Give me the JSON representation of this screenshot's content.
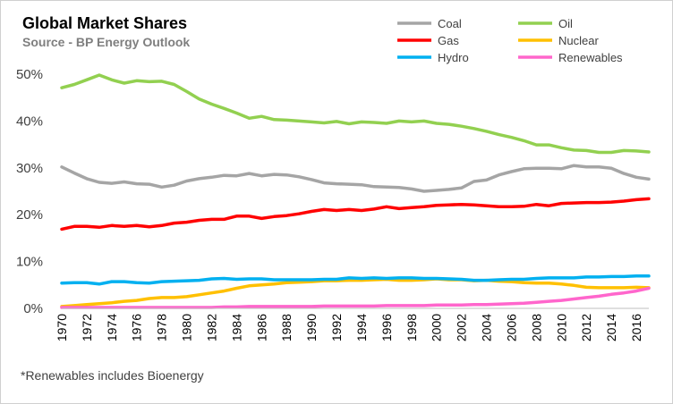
{
  "chart_data": {
    "type": "line",
    "title": "Global Market Shares",
    "subtitle": "Source - BP Energy Outlook",
    "footnote": "*Renewables includes Bioenergy",
    "xlabel": "",
    "ylabel": "",
    "ylim": [
      0,
      50
    ],
    "yticks": [
      "0%",
      "10%",
      "20%",
      "30%",
      "40%",
      "50%"
    ],
    "x": [
      1970,
      1971,
      1972,
      1973,
      1974,
      1975,
      1976,
      1977,
      1978,
      1979,
      1980,
      1981,
      1982,
      1983,
      1984,
      1985,
      1986,
      1987,
      1988,
      1989,
      1990,
      1991,
      1992,
      1993,
      1994,
      1995,
      1996,
      1997,
      1998,
      1999,
      2000,
      2001,
      2002,
      2003,
      2004,
      2005,
      2006,
      2007,
      2008,
      2009,
      2010,
      2011,
      2012,
      2013,
      2014,
      2015,
      2016,
      2017
    ],
    "xtick_labels": [
      "1970",
      "1972",
      "1974",
      "1976",
      "1978",
      "1980",
      "1982",
      "1984",
      "1986",
      "1988",
      "1990",
      "1992",
      "1994",
      "1996",
      "1998",
      "2000",
      "2002",
      "2004",
      "2006",
      "2008",
      "2010",
      "2012",
      "2014",
      "2016"
    ],
    "legend_position": "top-right",
    "grid": false,
    "series": [
      {
        "name": "Coal",
        "color": "#a5a5a5",
        "values": [
          30.2,
          28.9,
          27.7,
          26.9,
          26.7,
          27.0,
          26.6,
          26.5,
          25.9,
          26.3,
          27.2,
          27.7,
          28.0,
          28.4,
          28.3,
          28.8,
          28.3,
          28.6,
          28.5,
          28.1,
          27.5,
          26.8,
          26.6,
          26.5,
          26.4,
          26.0,
          25.9,
          25.8,
          25.5,
          25.0,
          25.2,
          25.4,
          25.7,
          27.1,
          27.4,
          28.5,
          29.2,
          29.8,
          29.9,
          29.9,
          29.8,
          30.5,
          30.2,
          30.2,
          29.9,
          28.8,
          28.0,
          27.6
        ]
      },
      {
        "name": "Oil",
        "color": "#92d050",
        "values": [
          47.1,
          47.8,
          48.8,
          49.8,
          48.8,
          48.1,
          48.6,
          48.4,
          48.5,
          47.8,
          46.3,
          44.7,
          43.6,
          42.7,
          41.7,
          40.6,
          41.0,
          40.3,
          40.2,
          40.0,
          39.8,
          39.6,
          39.9,
          39.4,
          39.8,
          39.7,
          39.5,
          40.0,
          39.8,
          40.0,
          39.5,
          39.3,
          38.9,
          38.4,
          37.8,
          37.1,
          36.5,
          35.8,
          34.9,
          34.9,
          34.3,
          33.8,
          33.7,
          33.3,
          33.3,
          33.7,
          33.6,
          33.4
        ]
      },
      {
        "name": "Gas",
        "color": "#ff0000",
        "values": [
          16.9,
          17.5,
          17.5,
          17.3,
          17.7,
          17.5,
          17.7,
          17.4,
          17.7,
          18.2,
          18.4,
          18.8,
          19.0,
          19.0,
          19.7,
          19.7,
          19.2,
          19.6,
          19.8,
          20.2,
          20.7,
          21.1,
          20.9,
          21.1,
          20.9,
          21.2,
          21.7,
          21.3,
          21.5,
          21.7,
          22.0,
          22.1,
          22.2,
          22.1,
          21.9,
          21.7,
          21.7,
          21.8,
          22.2,
          21.9,
          22.4,
          22.5,
          22.6,
          22.6,
          22.7,
          22.9,
          23.2,
          23.4
        ]
      },
      {
        "name": "Nuclear",
        "color": "#ffc000",
        "values": [
          0.4,
          0.6,
          0.8,
          1.0,
          1.2,
          1.5,
          1.7,
          2.1,
          2.3,
          2.3,
          2.5,
          2.9,
          3.3,
          3.7,
          4.3,
          4.8,
          5.0,
          5.2,
          5.5,
          5.6,
          5.7,
          5.9,
          5.9,
          6.0,
          6.0,
          6.1,
          6.2,
          6.0,
          6.0,
          6.1,
          6.3,
          6.1,
          6.1,
          5.9,
          6.0,
          5.8,
          5.7,
          5.5,
          5.4,
          5.4,
          5.2,
          4.9,
          4.5,
          4.4,
          4.4,
          4.4,
          4.5,
          4.4
        ]
      },
      {
        "name": "Hydro",
        "color": "#00b0f0",
        "values": [
          5.4,
          5.5,
          5.5,
          5.2,
          5.7,
          5.7,
          5.5,
          5.4,
          5.7,
          5.8,
          5.9,
          6.0,
          6.3,
          6.4,
          6.2,
          6.3,
          6.3,
          6.1,
          6.1,
          6.1,
          6.1,
          6.2,
          6.2,
          6.5,
          6.4,
          6.5,
          6.4,
          6.5,
          6.5,
          6.4,
          6.4,
          6.3,
          6.2,
          6.0,
          6.0,
          6.1,
          6.2,
          6.2,
          6.4,
          6.5,
          6.5,
          6.5,
          6.7,
          6.7,
          6.8,
          6.8,
          6.9,
          6.9
        ]
      },
      {
        "name": "Renewables",
        "color": "#ff66cc",
        "values": [
          0.2,
          0.2,
          0.2,
          0.2,
          0.2,
          0.2,
          0.2,
          0.2,
          0.2,
          0.2,
          0.2,
          0.2,
          0.2,
          0.3,
          0.3,
          0.4,
          0.4,
          0.4,
          0.4,
          0.4,
          0.4,
          0.5,
          0.5,
          0.5,
          0.5,
          0.5,
          0.6,
          0.6,
          0.6,
          0.6,
          0.7,
          0.7,
          0.7,
          0.8,
          0.8,
          0.9,
          1.0,
          1.1,
          1.3,
          1.5,
          1.7,
          2.0,
          2.3,
          2.6,
          3.0,
          3.3,
          3.7,
          4.3
        ]
      }
    ]
  }
}
